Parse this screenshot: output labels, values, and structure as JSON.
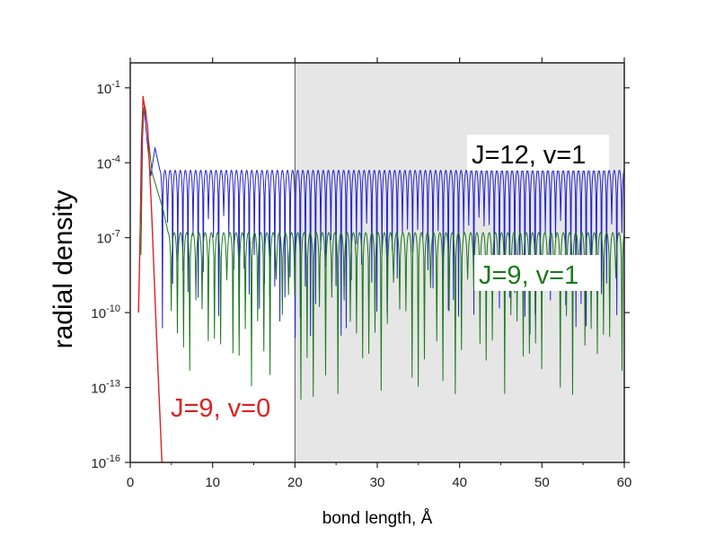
{
  "chart_data": {
    "type": "line",
    "title": "",
    "xlabel": "bond length, Å",
    "ylabel": "radial density",
    "xlim": [
      0,
      60
    ],
    "ylim_log10": [
      -16,
      0
    ],
    "yscale": "log",
    "x_ticks": [
      0,
      10,
      20,
      30,
      40,
      50,
      60
    ],
    "x_tick_labels": [
      "0",
      "10",
      "20",
      "30",
      "40",
      "50",
      "60"
    ],
    "y_ticks": [
      {
        "base": "10",
        "exp": "-1"
      },
      {
        "base": "10",
        "exp": "-4"
      },
      {
        "base": "10",
        "exp": "-7"
      },
      {
        "base": "10",
        "exp": "-10"
      },
      {
        "base": "10",
        "exp": "-13"
      },
      {
        "base": "10",
        "exp": "-16"
      }
    ],
    "grid": false,
    "shaded_region": {
      "x_from": 20,
      "x_to": 60,
      "color": "#e6e6e6"
    },
    "vertical_line_x": 20,
    "series": [
      {
        "name": "J=12, v=1",
        "color": "#2222cc",
        "peak": {
          "x": 1.6,
          "y": 0.015
        },
        "oscillation": {
          "x_start": 3.6,
          "x_end": 60,
          "period": 0.62,
          "max": 5e-05,
          "dip_min": 1e-11
        }
      },
      {
        "name": "J=9, v=1",
        "color": "#1a7a1a",
        "peak": {
          "x": 1.75,
          "y": 0.02
        },
        "oscillation": {
          "x_start": 4.6,
          "x_end": 60,
          "period": 0.75,
          "max": 1.6e-07,
          "dip_min": 2e-14
        }
      },
      {
        "name": "J=9, v=0",
        "color": "#dd2222",
        "points": [
          {
            "x": 1.0,
            "y": 1e-10
          },
          {
            "x": 1.55,
            "y": 0.045
          },
          {
            "x": 2.1,
            "y": 0.003
          },
          {
            "x": 2.6,
            "y": 1e-06
          },
          {
            "x": 3.2,
            "y": 1e-11
          },
          {
            "x": 3.85,
            "y": 1e-16
          }
        ]
      }
    ],
    "annotations": [
      {
        "text": "J=12, v=1",
        "color": "#000000"
      },
      {
        "text": "J=9, v=1",
        "color": "#1a7a1a"
      },
      {
        "text": "J=9, v=0",
        "color": "#dd2222"
      }
    ]
  }
}
